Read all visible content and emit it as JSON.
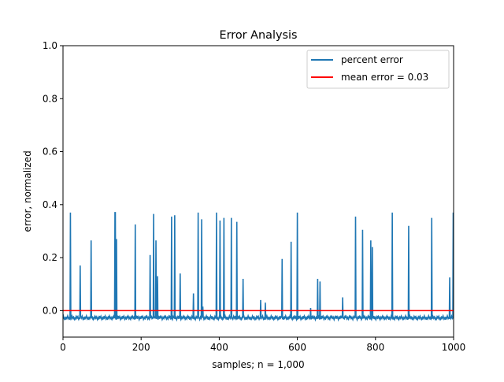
{
  "chart_data": {
    "type": "line",
    "title": "Error Analysis",
    "xlabel": "samples; n = 1,000",
    "ylabel": "error, normalized",
    "xlim": [
      0,
      1000
    ],
    "ylim": [
      -0.1,
      1.0
    ],
    "x_ticks": [
      0,
      200,
      400,
      600,
      800,
      1000
    ],
    "x_tick_labels": [
      "0",
      "200",
      "400",
      "600",
      "800",
      "1000"
    ],
    "y_ticks": [
      0.0,
      0.2,
      0.4,
      0.6,
      0.8,
      1.0
    ],
    "y_tick_labels": [
      "0.0",
      "0.2",
      "0.4",
      "0.6",
      "0.8",
      "1.0"
    ],
    "grid": false,
    "legend_position": "top-right",
    "series": [
      {
        "name": "percent error",
        "color": "#1f77b4",
        "baseline": -0.027,
        "spikes": [
          [
            19,
            0.37
          ],
          [
            44,
            0.17
          ],
          [
            72,
            0.265
          ],
          [
            133,
            0.37
          ],
          [
            134,
            0.37
          ],
          [
            137,
            0.27
          ],
          [
            185,
            0.325
          ],
          [
            223,
            0.21
          ],
          [
            232,
            0.365
          ],
          [
            238,
            0.265
          ],
          [
            242,
            0.13
          ],
          [
            278,
            0.355
          ],
          [
            286,
            0.36
          ],
          [
            300,
            0.14
          ],
          [
            334,
            0.065
          ],
          [
            346,
            0.37
          ],
          [
            355,
            0.345
          ],
          [
            358,
            0.015
          ],
          [
            393,
            0.37
          ],
          [
            402,
            0.34
          ],
          [
            412,
            0.35
          ],
          [
            431,
            0.35
          ],
          [
            445,
            0.335
          ],
          [
            461,
            0.12
          ],
          [
            506,
            0.04
          ],
          [
            518,
            0.03
          ],
          [
            561,
            0.195
          ],
          [
            584,
            0.26
          ],
          [
            600,
            0.37
          ],
          [
            634,
            0.01
          ],
          [
            652,
            0.12
          ],
          [
            658,
            0.11
          ],
          [
            716,
            0.05
          ],
          [
            749,
            0.355
          ],
          [
            767,
            0.305
          ],
          [
            788,
            0.265
          ],
          [
            792,
            0.24
          ],
          [
            843,
            0.37
          ],
          [
            885,
            0.32
          ],
          [
            944,
            0.35
          ],
          [
            990,
            0.125
          ],
          [
            999,
            0.37
          ]
        ]
      },
      {
        "name": "mean error = 0.03",
        "color": "#ff0000",
        "constant": 0.0
      }
    ]
  }
}
